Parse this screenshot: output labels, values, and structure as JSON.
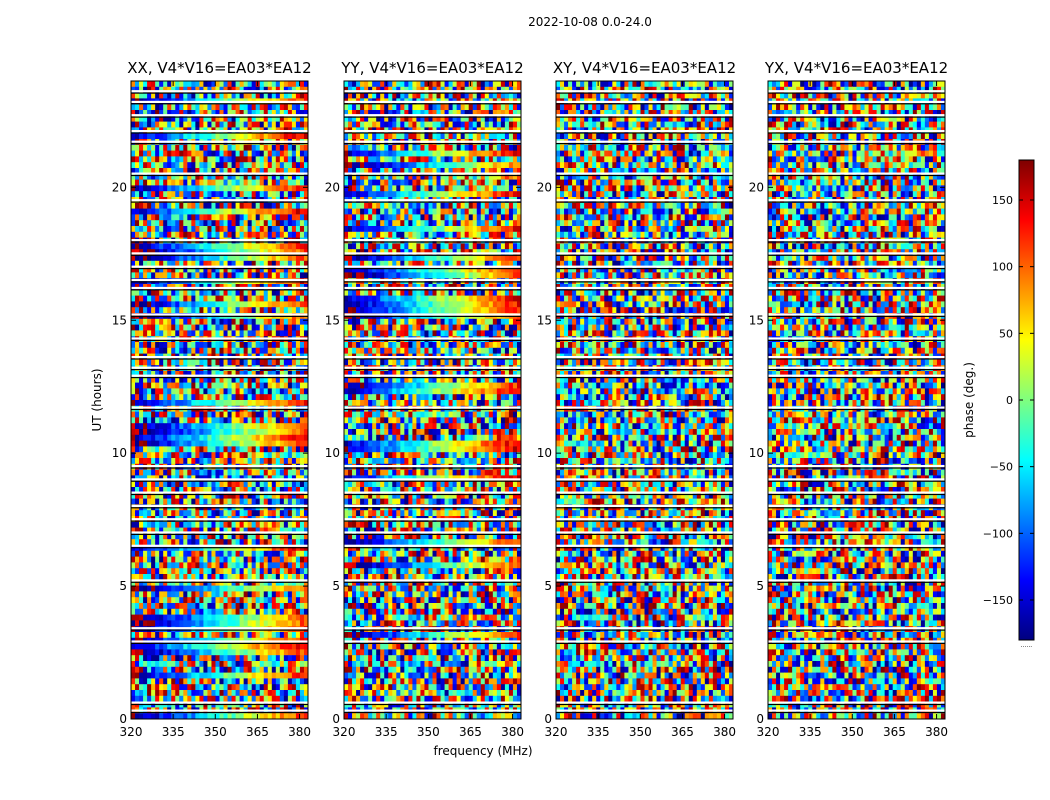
{
  "chart_data": {
    "type": "heatmap",
    "suptitle": "2022-10-08 0.0-24.0",
    "xlabel": "frequency (MHz)",
    "ylabel": "UT (hours)",
    "xlim": [
      320,
      383
    ],
    "ylim": [
      0,
      24
    ],
    "xticks": [
      320,
      335,
      350,
      365,
      380
    ],
    "yticks": [
      0,
      5,
      10,
      15,
      20
    ],
    "panels": [
      {
        "title": "XX, V4*V16=EA03*EA12",
        "polarization": "XX"
      },
      {
        "title": "YY, V4*V16=EA03*EA12",
        "polarization": "YY"
      },
      {
        "title": "XY, V4*V16=EA03*EA12",
        "polarization": "XY"
      },
      {
        "title": "YX, V4*V16=EA03*EA12",
        "polarization": "YX"
      }
    ],
    "value_description": "visibility phase vs time and frequency, wrapped, mostly noise-like with horizontal flagged gaps",
    "flagged_ut_bands": [
      0.3,
      0.6,
      2.9,
      3.4,
      5.2,
      6.5,
      7.0,
      7.5,
      8.0,
      8.5,
      9.0,
      9.5,
      11.7,
      12.9,
      13.2,
      13.6,
      14.3,
      15.2,
      16.2,
      16.5,
      17.0,
      17.5,
      18.0,
      19.5,
      20.5,
      21.7,
      22.1,
      22.7,
      23.2,
      23.6
    ],
    "colorbar": {
      "label": "phase (deg.)",
      "range": [
        -180,
        180
      ],
      "ticks": [
        150,
        100,
        50,
        0,
        -50,
        -100,
        -150
      ],
      "tick_labels": [
        "150",
        "100",
        "50",
        "0",
        "−50",
        "−100",
        "−150"
      ],
      "colormap": "jet",
      "colors": [
        "#00007f",
        "#0000ff",
        "#007fff",
        "#00ffff",
        "#7fff7f",
        "#ffff00",
        "#ff7f00",
        "#ff0000",
        "#7f0000"
      ],
      "extra_label": "......"
    }
  }
}
